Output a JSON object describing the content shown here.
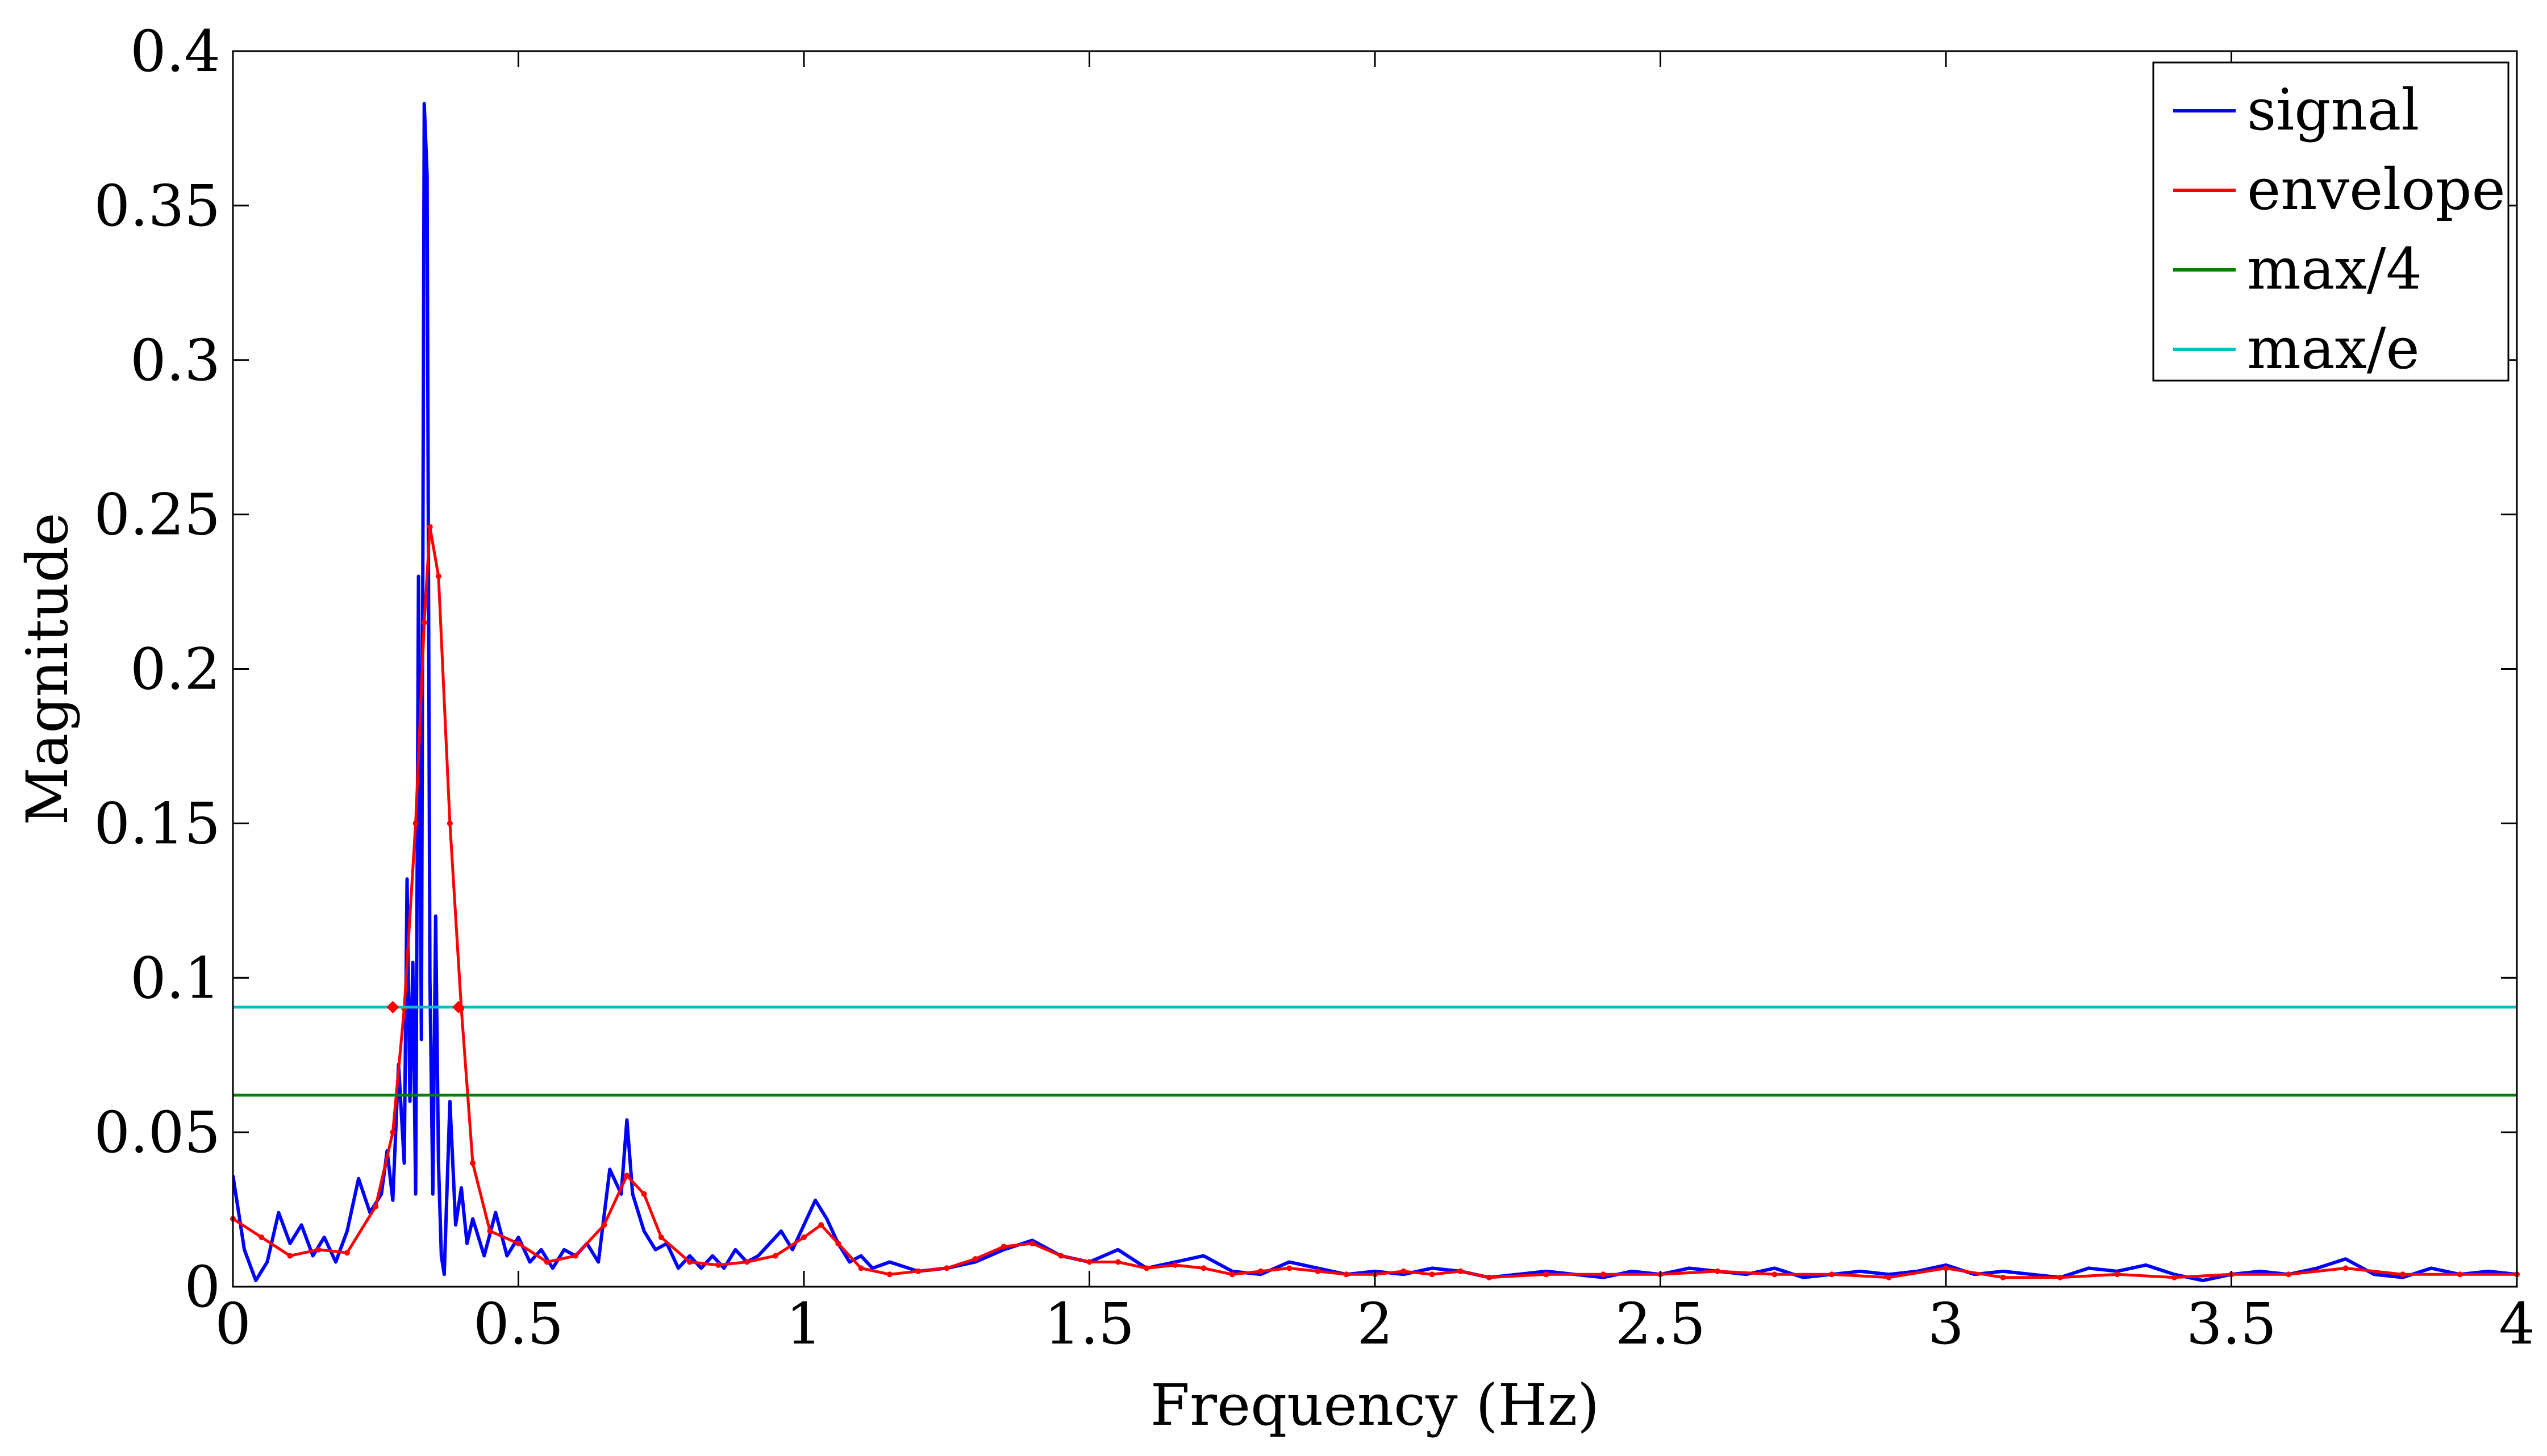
{
  "chart_data": {
    "type": "line",
    "title": "",
    "xlabel": "Frequency (Hz)",
    "ylabel": "Magnitude",
    "xlim": [
      0,
      4
    ],
    "ylim": [
      0,
      0.4
    ],
    "xticks": [
      0,
      0.5,
      1,
      1.5,
      2,
      2.5,
      3,
      3.5,
      4
    ],
    "xtick_labels": [
      "0",
      "0.5",
      "1",
      "1.5",
      "2",
      "2.5",
      "3",
      "3.5",
      "4"
    ],
    "yticks": [
      0,
      0.05,
      0.1,
      0.15,
      0.2,
      0.25,
      0.3,
      0.35,
      0.4
    ],
    "ytick_labels": [
      "0",
      "0.05",
      "0.1",
      "0.15",
      "0.2",
      "0.25",
      "0.3",
      "0.35",
      "0.4"
    ],
    "grid": false,
    "legend_position": "top-right",
    "series": [
      {
        "name": "signal",
        "color": "#0000ff",
        "x": [
          0,
          0.02,
          0.04,
          0.06,
          0.08,
          0.1,
          0.12,
          0.14,
          0.16,
          0.18,
          0.2,
          0.22,
          0.24,
          0.26,
          0.27,
          0.28,
          0.29,
          0.3,
          0.305,
          0.31,
          0.315,
          0.32,
          0.325,
          0.33,
          0.335,
          0.34,
          0.345,
          0.35,
          0.355,
          0.36,
          0.365,
          0.37,
          0.38,
          0.39,
          0.4,
          0.41,
          0.42,
          0.44,
          0.46,
          0.48,
          0.5,
          0.52,
          0.54,
          0.56,
          0.58,
          0.6,
          0.62,
          0.64,
          0.66,
          0.68,
          0.69,
          0.7,
          0.72,
          0.74,
          0.76,
          0.78,
          0.8,
          0.82,
          0.84,
          0.86,
          0.88,
          0.9,
          0.92,
          0.94,
          0.96,
          0.98,
          1.0,
          1.02,
          1.04,
          1.06,
          1.08,
          1.1,
          1.12,
          1.15,
          1.2,
          1.25,
          1.3,
          1.35,
          1.4,
          1.45,
          1.5,
          1.55,
          1.6,
          1.65,
          1.7,
          1.75,
          1.8,
          1.85,
          1.9,
          1.95,
          2.0,
          2.05,
          2.1,
          2.15,
          2.2,
          2.25,
          2.3,
          2.35,
          2.4,
          2.45,
          2.5,
          2.55,
          2.6,
          2.65,
          2.7,
          2.75,
          2.8,
          2.85,
          2.9,
          2.95,
          3.0,
          3.05,
          3.1,
          3.15,
          3.2,
          3.25,
          3.3,
          3.35,
          3.4,
          3.45,
          3.5,
          3.55,
          3.6,
          3.65,
          3.7,
          3.75,
          3.8,
          3.85,
          3.9,
          3.95,
          4.0
        ],
        "y": [
          0.036,
          0.012,
          0.002,
          0.008,
          0.024,
          0.014,
          0.02,
          0.01,
          0.016,
          0.008,
          0.018,
          0.035,
          0.024,
          0.03,
          0.044,
          0.028,
          0.072,
          0.04,
          0.132,
          0.06,
          0.105,
          0.03,
          0.23,
          0.08,
          0.383,
          0.36,
          0.1,
          0.03,
          0.12,
          0.04,
          0.01,
          0.004,
          0.06,
          0.02,
          0.032,
          0.014,
          0.022,
          0.01,
          0.024,
          0.01,
          0.016,
          0.008,
          0.012,
          0.006,
          0.012,
          0.01,
          0.014,
          0.008,
          0.038,
          0.03,
          0.054,
          0.03,
          0.018,
          0.012,
          0.014,
          0.006,
          0.01,
          0.006,
          0.01,
          0.006,
          0.012,
          0.008,
          0.01,
          0.014,
          0.018,
          0.012,
          0.02,
          0.028,
          0.022,
          0.014,
          0.008,
          0.01,
          0.006,
          0.008,
          0.005,
          0.006,
          0.008,
          0.012,
          0.015,
          0.01,
          0.008,
          0.012,
          0.006,
          0.008,
          0.01,
          0.005,
          0.004,
          0.008,
          0.006,
          0.004,
          0.005,
          0.004,
          0.006,
          0.005,
          0.003,
          0.004,
          0.005,
          0.004,
          0.003,
          0.005,
          0.004,
          0.006,
          0.005,
          0.004,
          0.006,
          0.003,
          0.004,
          0.005,
          0.004,
          0.005,
          0.007,
          0.004,
          0.005,
          0.004,
          0.003,
          0.006,
          0.005,
          0.007,
          0.004,
          0.002,
          0.004,
          0.005,
          0.004,
          0.006,
          0.009,
          0.004,
          0.003,
          0.006,
          0.004,
          0.005,
          0.004
        ]
      },
      {
        "name": "envelope",
        "color": "#ff0000",
        "x": [
          0,
          0.05,
          0.1,
          0.15,
          0.2,
          0.25,
          0.28,
          0.3,
          0.32,
          0.335,
          0.345,
          0.36,
          0.38,
          0.4,
          0.42,
          0.45,
          0.5,
          0.55,
          0.6,
          0.65,
          0.69,
          0.72,
          0.75,
          0.8,
          0.85,
          0.9,
          0.95,
          1.0,
          1.03,
          1.06,
          1.1,
          1.15,
          1.2,
          1.25,
          1.3,
          1.35,
          1.4,
          1.45,
          1.5,
          1.55,
          1.6,
          1.65,
          1.7,
          1.75,
          1.8,
          1.85,
          1.9,
          1.95,
          2.0,
          2.05,
          2.1,
          2.15,
          2.2,
          2.3,
          2.4,
          2.5,
          2.6,
          2.7,
          2.8,
          2.9,
          3.0,
          3.1,
          3.2,
          3.3,
          3.4,
          3.5,
          3.6,
          3.7,
          3.8,
          3.9,
          4.0
        ],
        "y": [
          0.022,
          0.016,
          0.01,
          0.012,
          0.011,
          0.026,
          0.05,
          0.09,
          0.15,
          0.215,
          0.246,
          0.23,
          0.15,
          0.09,
          0.04,
          0.018,
          0.014,
          0.008,
          0.01,
          0.02,
          0.036,
          0.03,
          0.016,
          0.008,
          0.007,
          0.008,
          0.01,
          0.016,
          0.02,
          0.014,
          0.006,
          0.004,
          0.005,
          0.006,
          0.009,
          0.013,
          0.014,
          0.01,
          0.008,
          0.008,
          0.006,
          0.007,
          0.006,
          0.004,
          0.005,
          0.006,
          0.005,
          0.004,
          0.004,
          0.005,
          0.004,
          0.005,
          0.003,
          0.004,
          0.004,
          0.004,
          0.005,
          0.004,
          0.004,
          0.003,
          0.006,
          0.003,
          0.003,
          0.004,
          0.003,
          0.004,
          0.004,
          0.006,
          0.004,
          0.004,
          0.004
        ]
      },
      {
        "name": "max/4",
        "color": "#008000",
        "x": [
          0,
          4
        ],
        "y": [
          0.062,
          0.062
        ]
      },
      {
        "name": "max/e",
        "color": "#00bfbf",
        "x": [
          0,
          4
        ],
        "y": [
          0.0905,
          0.0905
        ]
      }
    ],
    "markers": [
      {
        "x": 0.28,
        "y": 0.0905,
        "color": "#ff0000"
      },
      {
        "x": 0.395,
        "y": 0.0905,
        "color": "#ff0000"
      }
    ]
  }
}
